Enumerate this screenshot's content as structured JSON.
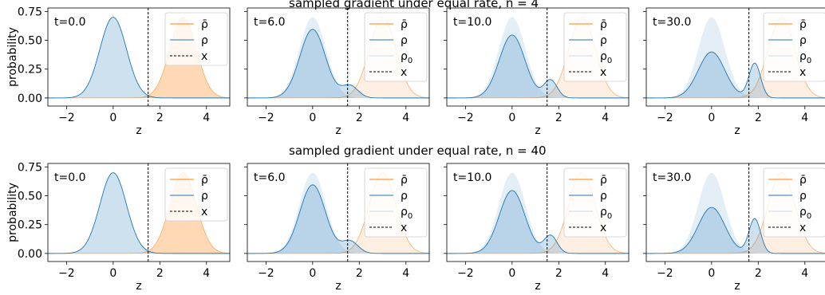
{
  "figure": {
    "row_titles": [
      "sampled gradient under equal rate, n = 4",
      "sampled gradient under equal rate, n = 40"
    ],
    "ylabel": "probability",
    "xlabel": "z",
    "colors": {
      "rho_bar": "#ff7f0e",
      "rho": "#1f77b4",
      "x_line": "#000000"
    }
  },
  "chart_data": [
    {
      "type": "area",
      "panel": "n=4, t=0.0",
      "annotation": "t=0.0",
      "xlabel": "z",
      "ylabel": "probability",
      "xlim": [
        -2.8,
        5
      ],
      "ylim": [
        -0.07,
        0.78
      ],
      "xticks": [
        -2,
        0,
        2,
        4
      ],
      "yticks": [
        0.0,
        0.25,
        0.5,
        0.75
      ],
      "x_marker": 1.5,
      "legend": [
        "ρ̄",
        "ρ",
        "x"
      ],
      "series": [
        {
          "name": "ρ̄",
          "components": [
            {
              "mu": 3.0,
              "sigma": 0.57,
              "w": 1.0
            }
          ],
          "peak": 0.7
        },
        {
          "name": "ρ",
          "components": [
            {
              "mu": 0.0,
              "sigma": 0.57,
              "w": 1.0
            }
          ],
          "peak": 0.7
        }
      ]
    },
    {
      "type": "area",
      "panel": "n=4, t=6.0",
      "annotation": "t=6.0",
      "xlabel": "z",
      "ylim": [
        -0.07,
        0.78
      ],
      "xticks": [
        -2,
        0,
        2,
        4
      ],
      "x_marker": 1.5,
      "legend": [
        "ρ̄",
        "ρ",
        "ρ0",
        "x"
      ],
      "series": [
        {
          "name": "ρ̄",
          "components": [
            {
              "mu": 3.0,
              "sigma": 0.57,
              "w": 1.0
            }
          ]
        },
        {
          "name": "ρ",
          "components": [
            {
              "mu": 0.0,
              "sigma": 0.55,
              "w": 0.85
            },
            {
              "mu": 1.6,
              "sigma": 0.35,
              "w": 0.15
            }
          ]
        },
        {
          "name": "ρ0",
          "components": [
            {
              "mu": 0.0,
              "sigma": 0.57,
              "w": 1.0
            }
          ]
        }
      ]
    },
    {
      "type": "area",
      "panel": "n=4, t=10.0",
      "annotation": "t=10.0",
      "xlabel": "z",
      "ylim": [
        -0.07,
        0.78
      ],
      "xticks": [
        -2,
        0,
        2,
        4
      ],
      "x_marker": 1.5,
      "legend": [
        "ρ̄",
        "ρ",
        "ρ0",
        "x"
      ],
      "series": [
        {
          "name": "ρ̄",
          "components": [
            {
              "mu": 3.0,
              "sigma": 0.57,
              "w": 1.0
            }
          ]
        },
        {
          "name": "ρ",
          "components": [
            {
              "mu": 0.0,
              "sigma": 0.55,
              "w": 0.78
            },
            {
              "mu": 1.65,
              "sigma": 0.28,
              "w": 0.22
            }
          ]
        },
        {
          "name": "ρ0",
          "components": [
            {
              "mu": 0.0,
              "sigma": 0.57,
              "w": 1.0
            }
          ]
        }
      ]
    },
    {
      "type": "area",
      "panel": "n=4, t=30.0",
      "annotation": "t=30.0",
      "xlabel": "z",
      "ylim": [
        -0.07,
        0.78
      ],
      "xticks": [
        -2,
        0,
        2,
        4
      ],
      "x_marker": 1.6,
      "legend": [
        "ρ̄",
        "ρ",
        "ρ0",
        "x"
      ],
      "series": [
        {
          "name": "ρ̄",
          "components": [
            {
              "mu": 3.0,
              "sigma": 0.57,
              "w": 1.0
            }
          ]
        },
        {
          "name": "ρ",
          "components": [
            {
              "mu": 0.0,
              "sigma": 0.57,
              "w": 0.57
            },
            {
              "mu": 1.85,
              "sigma": 0.25,
              "w": 0.43
            }
          ]
        },
        {
          "name": "ρ0",
          "components": [
            {
              "mu": 0.0,
              "sigma": 0.57,
              "w": 1.0
            }
          ]
        }
      ]
    },
    {
      "type": "area",
      "panel": "n=40, t=0.0",
      "annotation": "t=0.0",
      "xlabel": "z",
      "ylabel": "probability",
      "ylim": [
        -0.07,
        0.78
      ],
      "xticks": [
        -2,
        0,
        2,
        4
      ],
      "yticks": [
        0.0,
        0.25,
        0.5,
        0.75
      ],
      "x_marker": 1.5,
      "legend": [
        "ρ̄",
        "ρ",
        "x"
      ],
      "series": [
        {
          "name": "ρ̄",
          "components": [
            {
              "mu": 3.0,
              "sigma": 0.57,
              "w": 1.0
            }
          ]
        },
        {
          "name": "ρ",
          "components": [
            {
              "mu": 0.0,
              "sigma": 0.57,
              "w": 1.0
            }
          ]
        }
      ]
    },
    {
      "type": "area",
      "panel": "n=40, t=6.0",
      "annotation": "t=6.0",
      "xlabel": "z",
      "ylim": [
        -0.07,
        0.78
      ],
      "xticks": [
        -2,
        0,
        2,
        4
      ],
      "x_marker": 1.5,
      "legend": [
        "ρ̄",
        "ρ",
        "ρ0",
        "x"
      ],
      "series": [
        {
          "name": "ρ̄",
          "components": [
            {
              "mu": 3.0,
              "sigma": 0.57,
              "w": 1.0
            }
          ]
        },
        {
          "name": "ρ",
          "components": [
            {
              "mu": 0.0,
              "sigma": 0.55,
              "w": 0.85
            },
            {
              "mu": 1.6,
              "sigma": 0.35,
              "w": 0.15
            }
          ]
        },
        {
          "name": "ρ0",
          "components": [
            {
              "mu": 0.0,
              "sigma": 0.57,
              "w": 1.0
            }
          ]
        }
      ]
    },
    {
      "type": "area",
      "panel": "n=40, t=10.0",
      "annotation": "t=10.0",
      "xlabel": "z",
      "ylim": [
        -0.07,
        0.78
      ],
      "xticks": [
        -2,
        0,
        2,
        4
      ],
      "x_marker": 1.5,
      "legend": [
        "ρ̄",
        "ρ",
        "ρ0",
        "x"
      ],
      "series": [
        {
          "name": "ρ̄",
          "components": [
            {
              "mu": 3.0,
              "sigma": 0.57,
              "w": 1.0
            }
          ]
        },
        {
          "name": "ρ",
          "components": [
            {
              "mu": 0.0,
              "sigma": 0.55,
              "w": 0.78
            },
            {
              "mu": 1.65,
              "sigma": 0.28,
              "w": 0.22
            }
          ]
        },
        {
          "name": "ρ0",
          "components": [
            {
              "mu": 0.0,
              "sigma": 0.57,
              "w": 1.0
            }
          ]
        }
      ]
    },
    {
      "type": "area",
      "panel": "n=40, t=30.0",
      "annotation": "t=30.0",
      "xlabel": "z",
      "ylim": [
        -0.07,
        0.78
      ],
      "xticks": [
        -2,
        0,
        2,
        4
      ],
      "x_marker": 1.6,
      "legend": [
        "ρ̄",
        "ρ",
        "ρ0",
        "x"
      ],
      "series": [
        {
          "name": "ρ̄",
          "components": [
            {
              "mu": 3.0,
              "sigma": 0.57,
              "w": 1.0
            }
          ]
        },
        {
          "name": "ρ",
          "components": [
            {
              "mu": 0.0,
              "sigma": 0.57,
              "w": 0.57
            },
            {
              "mu": 1.85,
              "sigma": 0.25,
              "w": 0.43
            }
          ]
        },
        {
          "name": "ρ0",
          "components": [
            {
              "mu": 0.0,
              "sigma": 0.57,
              "w": 1.0
            }
          ]
        }
      ]
    }
  ]
}
